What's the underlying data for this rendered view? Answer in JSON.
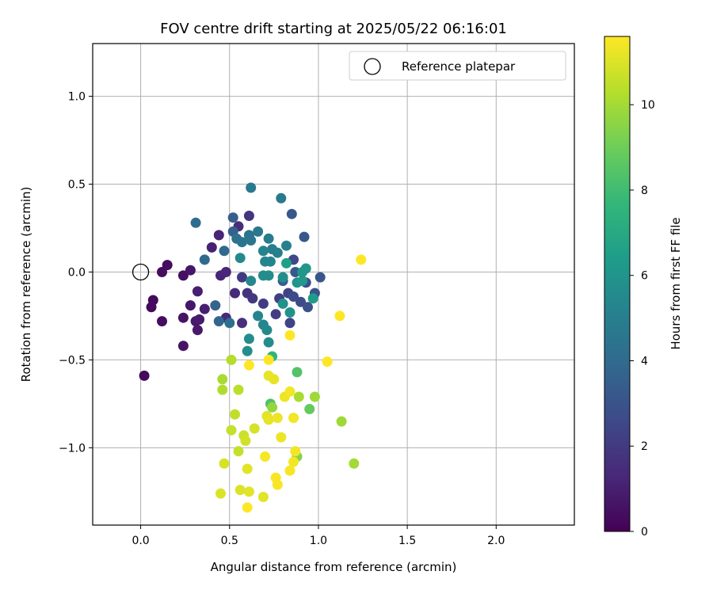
{
  "chart_data": {
    "type": "scatter",
    "title": "FOV centre drift starting at 2025/05/22 06:16:01",
    "xlabel": "Angular distance from reference (arcmin)",
    "ylabel": "Rotation from reference (arcmin)",
    "xlim": [
      -0.27,
      2.44
    ],
    "ylim": [
      -1.44,
      1.3
    ],
    "xticks": [
      0.0,
      0.5,
      1.0,
      1.5,
      2.0
    ],
    "xtick_labels": [
      "0.0",
      "0.5",
      "1.0",
      "1.5",
      "2.0"
    ],
    "yticks": [
      -1.0,
      -0.5,
      0.0,
      0.5,
      1.0
    ],
    "ytick_labels": [
      "−1.0",
      "−0.5",
      "0.0",
      "0.5",
      "1.0"
    ],
    "grid": true,
    "legend": {
      "placement": "top-right",
      "entries": [
        "Reference platepar"
      ]
    },
    "reference_point": {
      "x": 0.0,
      "y": 0.0,
      "marker": "open-circle"
    },
    "colorbar": {
      "label": "Hours from first FF file",
      "colormap": "viridis",
      "range": [
        0,
        11.6
      ],
      "ticks": [
        0,
        2,
        4,
        6,
        8,
        10
      ],
      "tick_labels": [
        "0",
        "2",
        "4",
        "6",
        "8",
        "10"
      ]
    },
    "points": [
      [
        0.02,
        -0.59,
        0.3
      ],
      [
        0.06,
        -0.2,
        0.3
      ],
      [
        0.07,
        -0.16,
        0.3
      ],
      [
        0.12,
        0.0,
        0.4
      ],
      [
        0.12,
        -0.28,
        0.4
      ],
      [
        0.15,
        0.04,
        0.4
      ],
      [
        0.24,
        -0.02,
        0.5
      ],
      [
        0.24,
        -0.26,
        0.6
      ],
      [
        0.24,
        -0.42,
        0.6
      ],
      [
        0.28,
        0.01,
        0.7
      ],
      [
        0.28,
        -0.19,
        0.7
      ],
      [
        0.31,
        -0.28,
        0.8
      ],
      [
        0.32,
        -0.33,
        0.8
      ],
      [
        0.33,
        -0.27,
        0.9
      ],
      [
        0.32,
        -0.11,
        1.0
      ],
      [
        0.36,
        -0.21,
        1.0
      ],
      [
        0.4,
        0.14,
        1.1
      ],
      [
        0.44,
        0.21,
        1.2
      ],
      [
        0.45,
        -0.02,
        1.2
      ],
      [
        0.48,
        0.0,
        1.3
      ],
      [
        0.48,
        -0.26,
        1.4
      ],
      [
        0.53,
        -0.12,
        1.4
      ],
      [
        0.55,
        0.26,
        1.5
      ],
      [
        0.57,
        -0.29,
        1.6
      ],
      [
        0.6,
        -0.12,
        1.7
      ],
      [
        0.61,
        0.32,
        1.8
      ],
      [
        0.63,
        -0.15,
        1.9
      ],
      [
        0.57,
        -0.03,
        2.0
      ],
      [
        0.69,
        -0.18,
        2.1
      ],
      [
        0.76,
        -0.24,
        2.1
      ],
      [
        0.78,
        -0.15,
        2.2
      ],
      [
        0.83,
        -0.12,
        2.3
      ],
      [
        0.84,
        -0.29,
        2.4
      ],
      [
        0.86,
        0.07,
        2.5
      ],
      [
        0.86,
        -0.14,
        2.6
      ],
      [
        0.9,
        -0.17,
        2.7
      ],
      [
        0.93,
        -0.06,
        2.8
      ],
      [
        0.94,
        -0.2,
        2.9
      ],
      [
        0.98,
        -0.12,
        3.0
      ],
      [
        1.01,
        -0.03,
        3.1
      ],
      [
        0.85,
        0.33,
        3.2
      ],
      [
        0.92,
        0.2,
        3.2
      ],
      [
        0.87,
        0.0,
        3.3
      ],
      [
        0.8,
        -0.05,
        3.4
      ],
      [
        0.52,
        0.31,
        3.5
      ],
      [
        0.52,
        0.23,
        3.6
      ],
      [
        0.42,
        -0.19,
        3.7
      ],
      [
        0.44,
        -0.28,
        3.8
      ],
      [
        0.47,
        0.12,
        3.9
      ],
      [
        0.36,
        0.07,
        4.0
      ],
      [
        0.31,
        0.28,
        4.1
      ],
      [
        0.5,
        -0.29,
        4.2
      ],
      [
        0.54,
        0.19,
        4.3
      ],
      [
        0.57,
        0.17,
        4.4
      ],
      [
        0.61,
        0.21,
        4.4
      ],
      [
        0.62,
        0.18,
        4.5
      ],
      [
        0.66,
        0.23,
        4.6
      ],
      [
        0.62,
        0.48,
        4.7
      ],
      [
        0.79,
        0.42,
        4.7
      ],
      [
        0.72,
        0.19,
        4.8
      ],
      [
        0.74,
        0.13,
        4.9
      ],
      [
        0.77,
        0.11,
        5.0
      ],
      [
        0.82,
        0.15,
        5.1
      ],
      [
        0.69,
        0.12,
        5.2
      ],
      [
        0.73,
        0.06,
        5.2
      ],
      [
        0.7,
        0.06,
        5.3
      ],
      [
        0.62,
        -0.05,
        5.4
      ],
      [
        0.56,
        0.08,
        5.5
      ],
      [
        0.69,
        -0.02,
        5.6
      ],
      [
        0.72,
        -0.02,
        5.6
      ],
      [
        0.8,
        -0.03,
        5.7
      ],
      [
        0.8,
        -0.18,
        5.8
      ],
      [
        0.84,
        -0.23,
        5.9
      ],
      [
        0.88,
        -0.06,
        6.0
      ],
      [
        0.91,
        -0.0,
        6.1
      ],
      [
        0.93,
        0.02,
        6.1
      ],
      [
        0.91,
        -0.05,
        6.2
      ],
      [
        0.97,
        -0.15,
        6.3
      ],
      [
        0.66,
        -0.25,
        5.3
      ],
      [
        0.69,
        -0.3,
        5.4
      ],
      [
        0.71,
        -0.33,
        5.5
      ],
      [
        0.72,
        -0.4,
        5.6
      ],
      [
        0.61,
        -0.38,
        5.6
      ],
      [
        0.6,
        -0.45,
        5.7
      ],
      [
        0.82,
        0.05,
        6.5
      ],
      [
        0.74,
        -0.48,
        7.6
      ],
      [
        0.88,
        -0.57,
        8.4
      ],
      [
        0.95,
        -0.78,
        8.8
      ],
      [
        0.73,
        -0.75,
        8.3
      ],
      [
        0.88,
        -1.05,
        9.4
      ],
      [
        0.74,
        -0.77,
        9.7
      ],
      [
        0.98,
        -0.71,
        9.9
      ],
      [
        1.13,
        -0.85,
        9.9
      ],
      [
        1.2,
        -1.09,
        10.0
      ],
      [
        0.89,
        -0.71,
        10.1
      ],
      [
        0.46,
        -0.61,
        10.1
      ],
      [
        0.46,
        -0.67,
        10.2
      ],
      [
        0.51,
        -0.5,
        10.3
      ],
      [
        0.55,
        -0.67,
        10.4
      ],
      [
        0.53,
        -0.81,
        10.5
      ],
      [
        0.51,
        -0.9,
        10.6
      ],
      [
        0.55,
        -1.02,
        10.6
      ],
      [
        0.58,
        -0.93,
        10.7
      ],
      [
        0.59,
        -0.96,
        10.8
      ],
      [
        0.64,
        -0.89,
        10.9
      ],
      [
        0.47,
        -1.09,
        10.9
      ],
      [
        0.45,
        -1.26,
        11.0
      ],
      [
        0.56,
        -1.24,
        11.0
      ],
      [
        0.6,
        -1.12,
        11.1
      ],
      [
        0.61,
        -1.25,
        11.1
      ],
      [
        0.69,
        -1.28,
        11.1
      ],
      [
        0.71,
        -0.82,
        11.1
      ],
      [
        0.72,
        -0.84,
        11.2
      ],
      [
        0.72,
        -0.59,
        11.2
      ],
      [
        0.75,
        -0.61,
        11.2
      ],
      [
        0.77,
        -0.83,
        11.3
      ],
      [
        0.79,
        -0.94,
        11.3
      ],
      [
        0.81,
        -0.71,
        11.3
      ],
      [
        0.84,
        -0.68,
        11.4
      ],
      [
        0.86,
        -0.83,
        11.4
      ],
      [
        0.87,
        -1.02,
        11.4
      ],
      [
        0.86,
        -1.08,
        11.4
      ],
      [
        0.84,
        -1.13,
        11.5
      ],
      [
        0.76,
        -1.17,
        11.5
      ],
      [
        0.77,
        -1.21,
        11.5
      ],
      [
        0.7,
        -1.05,
        11.5
      ],
      [
        0.61,
        -0.53,
        11.6
      ],
      [
        0.6,
        -1.34,
        11.6
      ],
      [
        0.72,
        -0.5,
        11.6
      ],
      [
        0.84,
        -0.36,
        11.6
      ],
      [
        1.05,
        -0.51,
        11.6
      ],
      [
        1.12,
        -0.25,
        11.6
      ],
      [
        1.24,
        0.07,
        11.6
      ]
    ]
  }
}
